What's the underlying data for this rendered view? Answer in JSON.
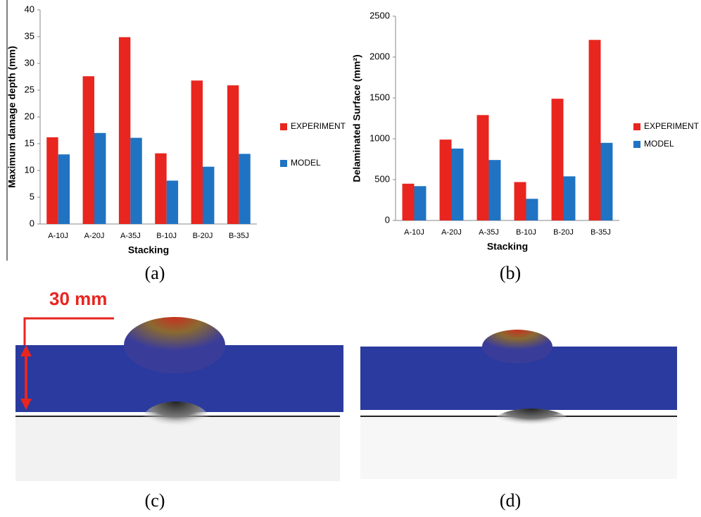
{
  "chart_data": [
    {
      "type": "bar",
      "ylabel": "Maximum damage depth (mm)",
      "xlabel": "Stacking",
      "categories": [
        "A-10J",
        "A-20J",
        "A-35J",
        "B-10J",
        "B-20J",
        "B-35J"
      ],
      "series": [
        {
          "name": "EXPERIMENT",
          "color": "#e8251f",
          "values": [
            16.2,
            27.6,
            34.9,
            13.2,
            26.8,
            25.9
          ]
        },
        {
          "name": "MODEL",
          "color": "#1f73c2",
          "values": [
            13,
            17,
            16.1,
            8.1,
            10.7,
            13.1
          ]
        }
      ],
      "ylim": [
        0,
        40
      ],
      "yticks": [
        0,
        5,
        10,
        15,
        20,
        25,
        30,
        35,
        40
      ],
      "grid": false,
      "legend": "right"
    },
    {
      "type": "bar",
      "ylabel": "Delaminated Surface  (mm²)",
      "xlabel": "Stacking",
      "categories": [
        "A-10J",
        "A-20J",
        "A-35J",
        "B-10J",
        "B-20J",
        "B-35J"
      ],
      "series": [
        {
          "name": "EXPERIMENT",
          "color": "#e8251f",
          "values": [
            450,
            990,
            1290,
            470,
            1490,
            2210
          ]
        },
        {
          "name": "MODEL",
          "color": "#1f73c2",
          "values": [
            420,
            880,
            740,
            265,
            540,
            950
          ]
        }
      ],
      "ylim": [
        0,
        2500
      ],
      "yticks": [
        0,
        500,
        1000,
        1500,
        2000,
        2500
      ],
      "grid": false,
      "legend": "right"
    }
  ],
  "panels": [
    "(a)",
    "(b)",
    "(c)",
    "(d)"
  ],
  "scale_label": "30 mm"
}
